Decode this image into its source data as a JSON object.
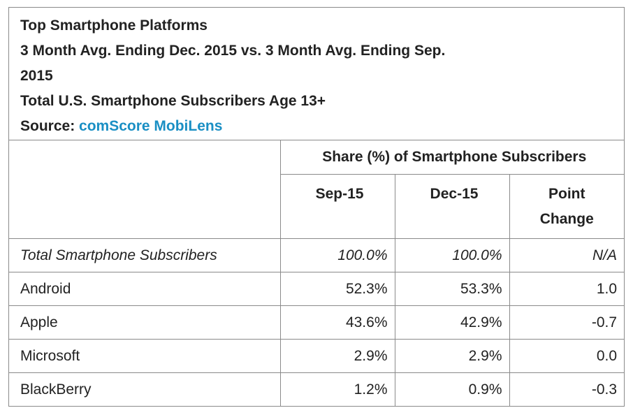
{
  "header": {
    "title": "Top Smartphone Platforms",
    "subtitle": "3 Month Avg. Ending Dec. 2015 vs. 3 Month Avg. Ending Sep. 2015",
    "description": "Total U.S. Smartphone Subscribers Age 13+",
    "source_label": "Source:",
    "source_link": "comScore MobiLens"
  },
  "table": {
    "group_header": "Share (%) of Smartphone Subscribers",
    "columns": [
      "Sep-15",
      "Dec-15",
      "Point Change"
    ],
    "rows": [
      [
        "Total Smartphone Subscribers",
        "100.0%",
        "100.0%",
        "N/A"
      ],
      [
        "Android",
        "52.3%",
        "53.3%",
        "1.0"
      ],
      [
        "Apple",
        "43.6%",
        "42.9%",
        "-0.7"
      ],
      [
        "Microsoft",
        "2.9%",
        "2.9%",
        "0.0"
      ],
      [
        "BlackBerry",
        "1.2%",
        "0.9%",
        "-0.3"
      ]
    ]
  }
}
